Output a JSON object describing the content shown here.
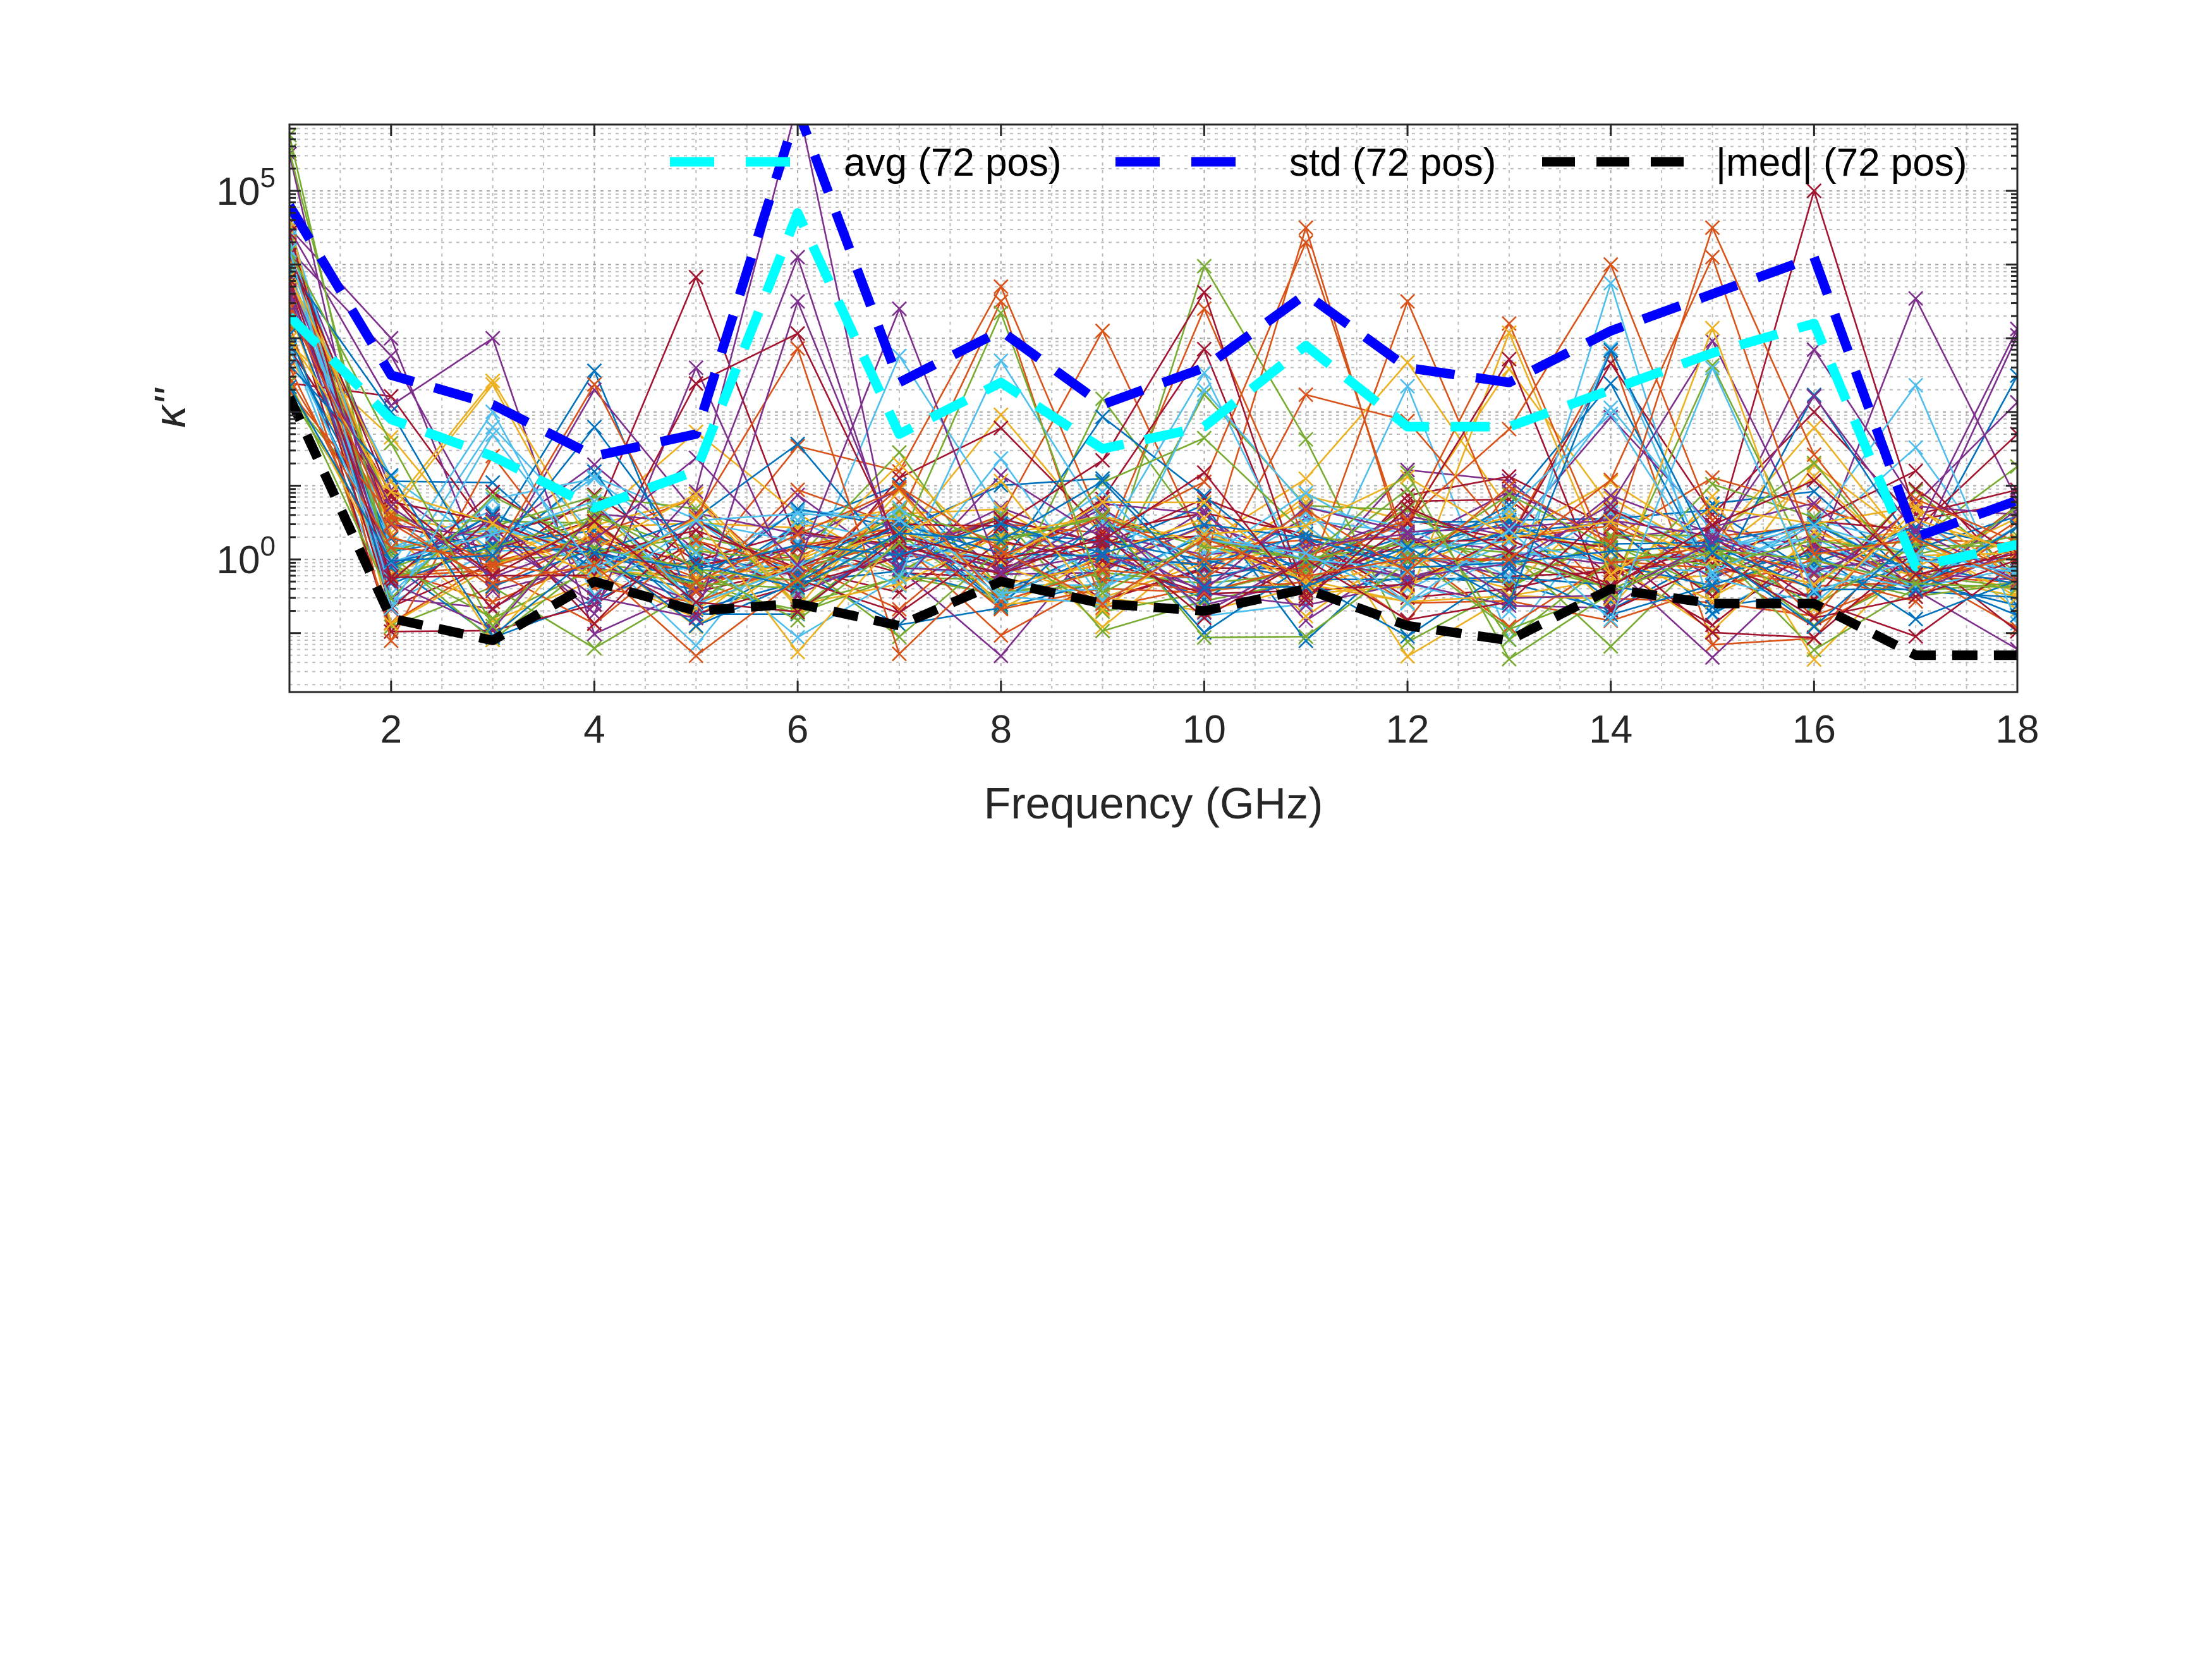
{
  "chart_data": {
    "type": "line",
    "xlabel": "Frequency (GHz)",
    "ylabel": "κ''",
    "xlim": [
      1,
      18
    ],
    "ylim_log10": [
      -1.8,
      5.9
    ],
    "yscale": "log",
    "grid": true,
    "minor_grid": true,
    "x_ticks": [
      2,
      4,
      6,
      8,
      10,
      12,
      14,
      16,
      18
    ],
    "x_tick_labels": [
      "2",
      "4",
      "6",
      "8",
      "10",
      "12",
      "14",
      "16",
      "18"
    ],
    "y_ticks": [
      {
        "exp": 0,
        "base": "10",
        "sup": "0"
      },
      {
        "exp": 5,
        "base": "10",
        "sup": "5"
      }
    ],
    "x": [
      1,
      2,
      3,
      4,
      5,
      6,
      7,
      8,
      9,
      10,
      11,
      12,
      13,
      14,
      15,
      16,
      17,
      18
    ],
    "legend": {
      "placement": "top-right",
      "entries": [
        {
          "label": "avg (72 pos)",
          "series": "avg"
        },
        {
          "label": "std (72 pos)",
          "series": "std"
        },
        {
          "label": "|med| (72 pos)",
          "series": "med"
        }
      ]
    },
    "series": [
      {
        "name": "avg (72 pos)",
        "key": "avg",
        "color": "#00FFFF",
        "style": "dashed",
        "log10_values": [
          3.3,
          1.9,
          1.4,
          0.7,
          1.2,
          4.7,
          1.7,
          2.4,
          1.5,
          1.8,
          2.9,
          1.8,
          1.8,
          2.3,
          2.8,
          3.2,
          -0.1,
          0.2
        ]
      },
      {
        "name": "std (72 pos)",
        "key": "std",
        "color": "#0000FF",
        "style": "dashed",
        "log10_values": [
          4.8,
          2.5,
          2.1,
          1.4,
          1.7,
          6.1,
          2.4,
          3.1,
          2.1,
          2.6,
          3.6,
          2.6,
          2.4,
          3.1,
          3.6,
          4.1,
          0.3,
          0.8
        ]
      },
      {
        "name": "|med| (72 pos)",
        "key": "med",
        "color": "#000000",
        "style": "dashed",
        "log10_values": [
          2.2,
          -0.8,
          -1.1,
          -0.3,
          -0.7,
          -0.6,
          -0.9,
          -0.3,
          -0.6,
          -0.7,
          -0.4,
          -0.9,
          -1.1,
          -0.4,
          -0.6,
          -0.6,
          -1.3,
          -1.3
        ]
      }
    ],
    "background_traces": {
      "count": 72,
      "marker": "x",
      "colors": [
        "#0072BD",
        "#D95319",
        "#EDB120",
        "#7E2F8E",
        "#77AC30",
        "#4DBEEE",
        "#A2142F"
      ],
      "peaks": [
        {
          "x": 1,
          "log10": 5.5
        },
        {
          "x": 1,
          "log10": 4.2
        },
        {
          "x": 2,
          "log10": 3.0
        },
        {
          "x": 3,
          "log10": 3.0
        },
        {
          "x": 4,
          "log10": 2.3
        },
        {
          "x": 5,
          "log10": 2.6
        },
        {
          "x": 6,
          "log10": 6.2
        },
        {
          "x": 6,
          "log10": 4.1
        },
        {
          "x": 6,
          "log10": 3.5
        },
        {
          "x": 7,
          "log10": 3.4
        },
        {
          "x": 8,
          "log10": 3.7
        },
        {
          "x": 8,
          "log10": 3.5
        },
        {
          "x": 9,
          "log10": 3.1
        },
        {
          "x": 10,
          "log10": 3.4
        },
        {
          "x": 11,
          "log10": 4.5
        },
        {
          "x": 11,
          "log10": 4.3
        },
        {
          "x": 12,
          "log10": 3.5
        },
        {
          "x": 13,
          "log10": 3.2
        },
        {
          "x": 14,
          "log10": 4.0
        },
        {
          "x": 15,
          "log10": 4.5
        },
        {
          "x": 15,
          "log10": 4.1
        },
        {
          "x": 16,
          "log10": 5.0
        },
        {
          "x": 16,
          "log10": 2.0
        },
        {
          "x": 17,
          "log10": 1.2
        },
        {
          "x": 18,
          "log10": 1.7
        }
      ]
    }
  }
}
